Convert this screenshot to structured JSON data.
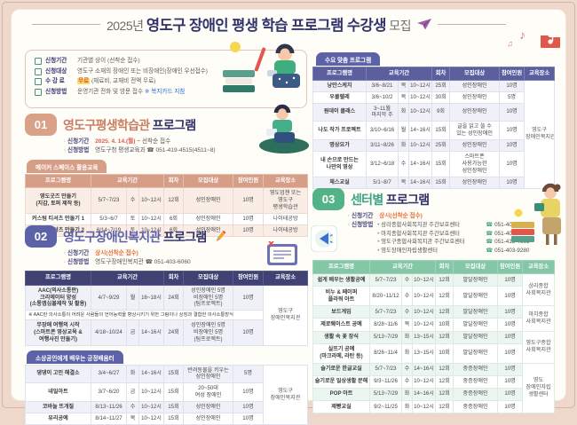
{
  "header": {
    "year": "2025년",
    "title": "영도구 장애인 평생 학습 프로그램 수강생",
    "suffix": "모집"
  },
  "info": {
    "rows": [
      {
        "label": "신청기간",
        "text": "기관별 상이 (선착순 접수)"
      },
      {
        "label": "신청대상",
        "text": "영도구 소재의 장애인 또는 비장애인(장애인 우선접수)"
      },
      {
        "label": "수 강 료",
        "highlight": "무료",
        "text": "(재료비, 교재비 전액 무료)"
      },
      {
        "label": "신청방법",
        "text": "운영기관 전화 및 방문 접수",
        "link": "※ 복지카드 지참"
      }
    ]
  },
  "section1": {
    "num": "01",
    "title": "영도구평생학습관",
    "title_suffix": "프로그램",
    "period_label": "신청기간",
    "period_strong": "2025. 4. 14.(월) ~",
    "period_rest": "선착순 접수",
    "method_label": "신청방법",
    "method": "영도구청 평생교육과 ☎ 051-419-4515(4511~8)",
    "tab": "메이커 스페이스 활용교육",
    "table": {
      "headers": [
        {
          "t": "프로그램명"
        },
        {
          "t": "교육기간",
          "c": 3
        },
        {
          "t": "회차"
        },
        {
          "t": "모집대상"
        },
        {
          "t": "참여인원"
        },
        {
          "t": "교육장소"
        }
      ],
      "rows": [
        [
          "영도굿즈 만들기\n(지갑, 토퍼 제작 등)",
          "5/7~7/23",
          "수",
          "10~12시",
          "12회",
          "성인장애인",
          "10명",
          "영도업첸 또는\n영도구\n평생학습관"
        ],
        [
          "커스텀 티셔츠 만들기 1",
          "5/3~6/7",
          "토",
          "10~12시",
          "6회",
          "성인장애인",
          "10명",
          "나이테공방"
        ],
        [
          "커스텀 티셔츠 만들기 2",
          "6/14~7/19",
          "토",
          "10~12시",
          "6회",
          "성인장애인",
          "10명",
          "나이테공방"
        ]
      ]
    }
  },
  "section2": {
    "num": "02",
    "title": "영도구장애인복지관",
    "title_suffix": "프로그램",
    "period_label": "신청기간",
    "period_strong": "상시(선착순 접수)",
    "method_label": "신청방법",
    "method": "영도구장애인복지관 ☎ 051-403-6060",
    "table1": {
      "headers": [
        {
          "t": "프로그램명"
        },
        {
          "t": "교육기간",
          "c": 3
        },
        {
          "t": "회차"
        },
        {
          "t": "모집대상"
        },
        {
          "t": "참여인원"
        },
        {
          "t": "교육장소"
        }
      ],
      "rows": [
        [
          "AAC(의사소통판)\n크리에이터 양성\n(소통앱심볼제작 및 활용)",
          "4/7~9/29",
          "월",
          "16~18시",
          "24회",
          "성인장애인 5명\n비장애인 5명\n(팀프로젝트)",
          "10명",
          {
            "t": "영도구\n장애인복지관",
            "r": 3,
            "cls": "loc"
          }
        ],
        [
          {
            "t": "※ AAC란 의사소통이 어려운 사람들의 언어능력을 향상시키기 위한 그림이나 상징과 결합한 의사소통방식",
            "c": 7,
            "cls": "note"
          }
        ],
        [
          "무장애 여행의 시작\n(스마트폰 영상교육 &\n여행사진 만들기)",
          "4/18~10/24",
          "금",
          "14~16시",
          "24회",
          "성인장애인 5명\n비장애인 5명\n(팀프로젝트)",
          "10명"
        ]
      ]
    },
    "tab2": "소상공인에게 배우는 긍정배움터",
    "table2": {
      "rows": [
        [
          "댕댕이 고민 해결소",
          "3/4~6/27",
          "화",
          "14~16시",
          "15회",
          "반려동물을 키우는\n성인장애인",
          "5명",
          {
            "t": "영도구\n장애인복지관",
            "r": 4,
            "cls": "loc"
          }
        ],
        [
          "네일아트",
          "3/7~6/20",
          "금",
          "10~12시",
          "15회",
          "20~50대\n여성 장애인",
          "10명"
        ],
        [
          "코바늘 뜨개질",
          "8/13~11/26",
          "수",
          "10~12시",
          "15회",
          "성인장애인",
          "10명"
        ],
        [
          "유리공예",
          "8/14~11/27",
          "목",
          "10~12시",
          "15회",
          "성인장애인",
          "10명"
        ]
      ]
    }
  },
  "demand": {
    "tab": "수요 맞춤 프로그램",
    "table": {
      "headers": [
        {
          "t": "프로그램명"
        },
        {
          "t": "교육기간",
          "c": 3
        },
        {
          "t": "회차"
        },
        {
          "t": "모집대상"
        },
        {
          "t": "참여인원"
        },
        {
          "t": "교육장소"
        }
      ],
      "rows": [
        [
          "낭만스케치",
          "3/6~8/21",
          "목",
          "10~12시",
          "25회",
          "성인장애인",
          "10명",
          {
            "t": "영도구\n장애인복지관",
            "r": 7,
            "cls": "loc"
          }
        ],
        [
          "우쿨렐레",
          "3/6~10/2",
          "목",
          "10~12시",
          "30회",
          "성인장애인",
          "5명"
        ],
        [
          "원데이 클래스",
          "3~11월\n마지막 주",
          "화",
          "10~12시",
          "9회",
          "성인장애인",
          "10명"
        ],
        [
          "나도 작가 프로젝트",
          "3/10~6/16",
          "월",
          "14~16시",
          "15회",
          "글을 읽고 쓸 수\n있는 성인장애인",
          "10명"
        ],
        [
          "명상요가",
          "3/11~8/26",
          "화",
          "10~12시",
          "25회",
          "성인장애인",
          "10명"
        ],
        [
          "내 손으로 만드는\n나만의 영상",
          "3/12~6/18",
          "수",
          "14~16시",
          "15회",
          "스마트폰\n사용가능한\n성인장애인",
          "10명"
        ],
        [
          "체스교실",
          "5/1~8/7",
          "목",
          "14~16시",
          "15회",
          "성인장애인",
          "10명"
        ]
      ]
    }
  },
  "section3": {
    "num": "03",
    "title": "센터별",
    "title_suffix": "프로그램",
    "period_label": "신청기간",
    "period_strong": "상시(선착순 접수)",
    "method_label": "신청방법",
    "contacts": [
      {
        "name": "상리종합사회복지관 주간보호센터",
        "phone": "051-404-5061"
      },
      {
        "name": "마치종합사회복지관 주간보호센터",
        "phone": "051-403-4200"
      },
      {
        "name": "영도구종합사회복지관 주간보호센터",
        "phone": "051-413-4661"
      },
      {
        "name": "영도장애인자립생활센터",
        "phone": "051-403-9280"
      }
    ],
    "table": {
      "headers": [
        {
          "t": "프로그램명"
        },
        {
          "t": "교육기간",
          "c": 3
        },
        {
          "t": "회차"
        },
        {
          "t": "모집대상"
        },
        {
          "t": "참여인원"
        },
        {
          "t": "교육장소"
        }
      ],
      "rows": [
        [
          "쉽게 배우는 생활공예",
          "5/7~7/23",
          "수",
          "10~12시",
          "12회",
          "발달장애인",
          "10명",
          {
            "t": "상리종합\n사회복지관",
            "r": 2,
            "cls": "loc"
          }
        ],
        [
          "비누 & 페이퍼\n플라워 아트",
          "8/20~11/12",
          "수",
          "10~12시",
          "12회",
          "발달장애인",
          "10명"
        ],
        [
          "보드게임",
          "5/7~7/23",
          "수",
          "10~12시",
          "12회",
          "발달장애인",
          "10명",
          {
            "t": "마치종합\n사회복지관",
            "r": 2,
            "cls": "loc"
          }
        ],
        [
          "제로웨이스트 공예",
          "8/28~11/6",
          "목",
          "10~12시",
          "10회",
          "발달장애인",
          "10명"
        ],
        [
          "생활 속 꽃 장식",
          "5/13~7/29",
          "화",
          "13~15시",
          "12회",
          "발달장애인",
          "10명",
          {
            "t": "영도구종합\n사회복지관",
            "r": 2,
            "cls": "loc"
          }
        ],
        [
          "실뜨기 공예\n(마크라메, 라탄 등)",
          "8/26~11/4",
          "화",
          "13~15시",
          "10회",
          "발달장애인",
          "10명"
        ],
        [
          "슬기로운 한글교실",
          "5/7~7/23",
          "수",
          "14~16시",
          "12회",
          "중증장애인",
          "10명",
          {
            "t": "영도\n장애인자립\n생활센터",
            "r": 4,
            "cls": "loc"
          }
        ],
        [
          "슬기로운 일상생활 문해",
          "9/3~11/26",
          "수",
          "10~12시",
          "12회",
          "중증장애인",
          "10명"
        ],
        [
          "POP 아트",
          "5/13~7/29",
          "화",
          "14~16시",
          "12회",
          "중증장애인",
          "10명"
        ],
        [
          "제빵교실",
          "9/2~11/25",
          "화",
          "10~12시",
          "12회",
          "중증장애인",
          "10명"
        ]
      ]
    }
  }
}
